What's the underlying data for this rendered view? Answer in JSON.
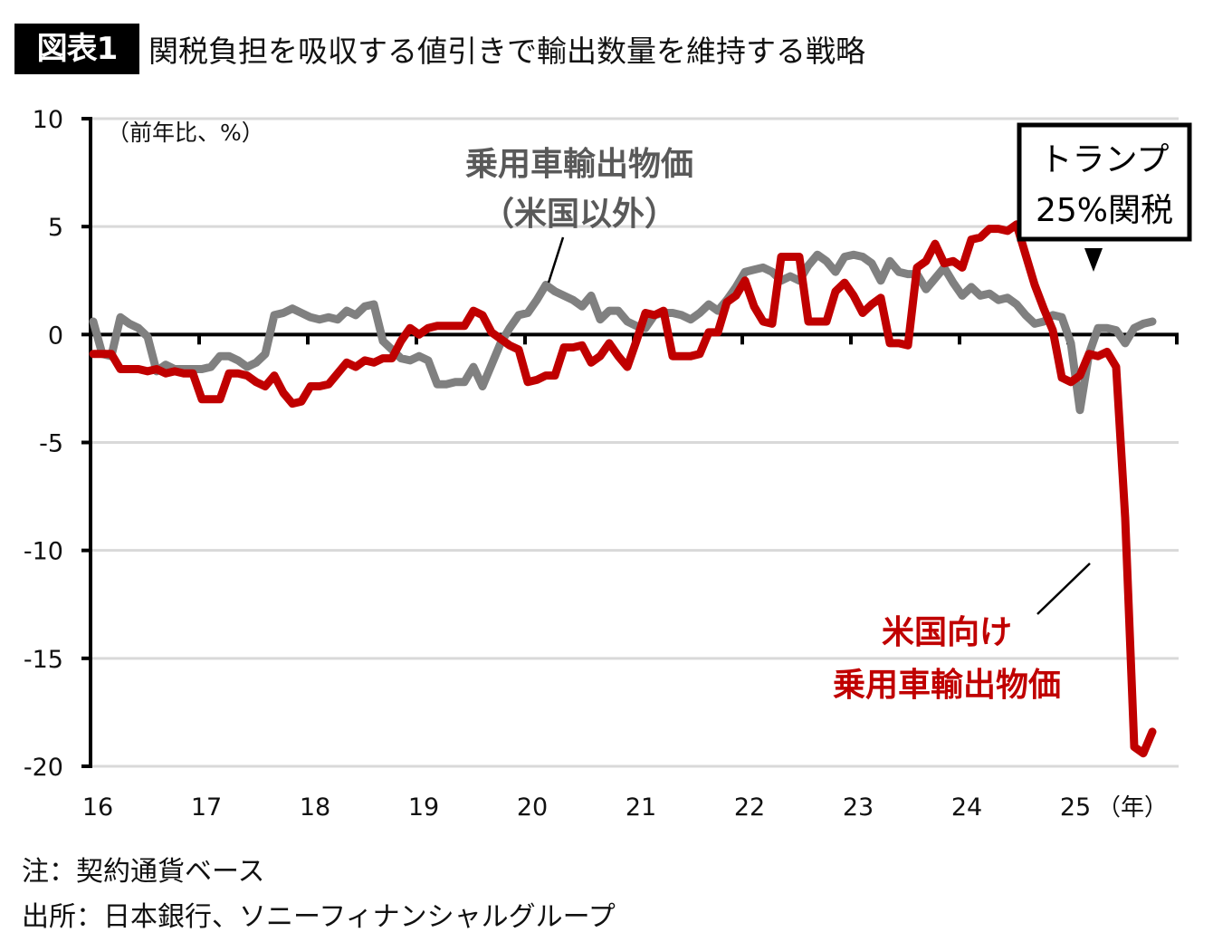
{
  "header": {
    "badge": "図表1",
    "title": "関税負担を吸収する値引きで輸出数量を維持する戦略"
  },
  "chart_data": {
    "type": "line",
    "title": "関税負担を吸収する値引きで輸出数量を維持する戦略",
    "unit_label": "（前年比、%）",
    "xlabel": "（年）",
    "ylabel": "",
    "ylim": [
      -20,
      10
    ],
    "yticks": [
      10,
      5,
      0,
      -5,
      -10,
      -15,
      -20
    ],
    "ytick_labels": [
      "10",
      "5",
      "0",
      "-5",
      "-10",
      "-15",
      "-20"
    ],
    "x_start": "2016-01",
    "x_frequency": "monthly",
    "xticks": [
      "16",
      "17",
      "18",
      "19",
      "20",
      "21",
      "22",
      "23",
      "24",
      "25"
    ],
    "grid": "horizontal",
    "series": [
      {
        "name": "乗用車輸出物価（米国以外）",
        "color": "#808080",
        "values": [
          0.6,
          -0.9,
          -1.0,
          0.8,
          0.5,
          0.3,
          -0.1,
          -1.7,
          -1.4,
          -1.6,
          -1.6,
          -1.6,
          -1.6,
          -1.5,
          -1.0,
          -1.0,
          -1.2,
          -1.5,
          -1.3,
          -0.9,
          0.9,
          1.0,
          1.2,
          1.0,
          0.8,
          0.7,
          0.8,
          0.7,
          1.1,
          0.9,
          1.3,
          1.4,
          -0.3,
          -0.7,
          -1.1,
          -1.2,
          -1.0,
          -1.2,
          -2.3,
          -2.3,
          -2.2,
          -2.2,
          -1.5,
          -2.4,
          -1.4,
          -0.4,
          0.3,
          0.9,
          1.0,
          1.6,
          2.3,
          2.0,
          1.8,
          1.6,
          1.3,
          1.8,
          0.7,
          1.1,
          1.1,
          0.6,
          0.4,
          0.3,
          0.9,
          1.0,
          1.0,
          0.9,
          0.7,
          1.0,
          1.4,
          1.1,
          1.6,
          2.2,
          2.9,
          3.0,
          3.1,
          2.9,
          2.5,
          2.7,
          2.5,
          3.2,
          3.7,
          3.4,
          2.9,
          3.6,
          3.7,
          3.6,
          3.3,
          2.5,
          3.4,
          2.9,
          2.8,
          2.8,
          2.1,
          2.6,
          3.1,
          2.4,
          1.8,
          2.2,
          1.8,
          1.9,
          1.6,
          1.7,
          1.4,
          0.9,
          0.5,
          0.6,
          0.9,
          0.8,
          -0.4,
          -3.5,
          -0.9,
          0.3,
          0.3,
          0.2,
          -0.4,
          0.3,
          0.5,
          0.6
        ],
        "label": [
          "乗用車輸出物価",
          "（米国以外）"
        ]
      },
      {
        "name": "米国向け乗用車輸出物価",
        "color": "#c00000",
        "values": [
          -0.9,
          -0.9,
          -0.9,
          -1.6,
          -1.6,
          -1.6,
          -1.7,
          -1.6,
          -1.8,
          -1.7,
          -1.8,
          -1.8,
          -3.0,
          -3.0,
          -3.0,
          -1.8,
          -1.8,
          -1.9,
          -2.2,
          -2.4,
          -1.9,
          -2.7,
          -3.2,
          -3.1,
          -2.4,
          -2.4,
          -2.3,
          -1.8,
          -1.3,
          -1.5,
          -1.2,
          -1.3,
          -1.1,
          -1.1,
          -0.3,
          0.3,
          0.0,
          0.3,
          0.4,
          0.4,
          0.4,
          0.4,
          1.1,
          0.9,
          0.1,
          -0.2,
          -0.5,
          -0.7,
          -2.2,
          -2.1,
          -1.9,
          -1.9,
          -0.6,
          -0.6,
          -0.5,
          -1.3,
          -1.0,
          -0.4,
          -1.0,
          -1.5,
          -0.3,
          1.0,
          0.9,
          1.1,
          -1.0,
          -1.0,
          -1.0,
          -0.9,
          0.1,
          0.1,
          1.5,
          1.8,
          2.5,
          1.3,
          0.6,
          0.5,
          3.6,
          3.6,
          3.6,
          0.6,
          0.6,
          0.6,
          2.0,
          2.4,
          1.8,
          1.0,
          1.4,
          1.7,
          -0.4,
          -0.4,
          -0.5,
          3.1,
          3.4,
          4.2,
          3.3,
          3.4,
          3.1,
          4.4,
          4.5,
          4.9,
          4.9,
          4.8,
          5.1,
          3.7,
          2.3,
          1.2,
          0.2,
          -2.0,
          -2.2,
          -1.9,
          -0.9,
          -1.0,
          -0.8,
          -1.5,
          -8.5,
          -19.1,
          -19.4,
          -18.4
        ],
        "label": [
          "米国向け",
          "乗用車輸出物価"
        ]
      }
    ],
    "annotations": [
      {
        "text": [
          "トランプ",
          "25%関税"
        ],
        "type": "boxed-callout",
        "marker": "down-triangle",
        "at": "2025-04"
      }
    ]
  },
  "notes": {
    "note": "注：契約通貨ベース",
    "source": "出所：日本銀行、ソニーフィナンシャルグループ"
  }
}
